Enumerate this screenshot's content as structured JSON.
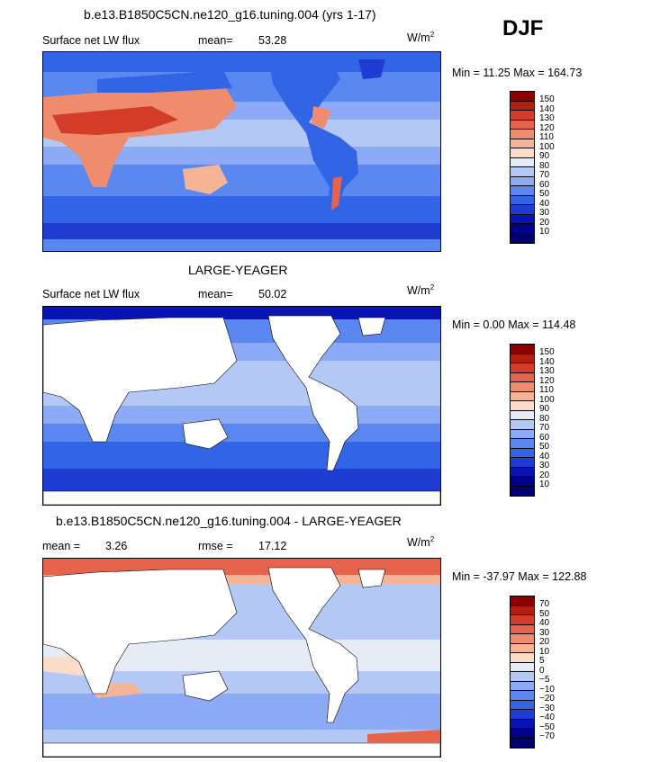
{
  "season": "DJF",
  "unit_main": "W/m",
  "unit_sup": "2",
  "panels": [
    {
      "title": "b.e13.B1850C5CN.ne120_g16.tuning.004 (yrs 1-17)",
      "left_label": "Surface net LW flux",
      "stat_label": "mean=",
      "stat_value": "53.28",
      "minmax": "Min =  11.25 Max = 164.73",
      "ticks": [
        "150",
        "140",
        "130",
        "120",
        "110",
        "100",
        "90",
        "80",
        "70",
        "60",
        "50",
        "40",
        "30",
        "20",
        "10"
      ]
    },
    {
      "title": "LARGE-YEAGER",
      "left_label": "Surface net LW flux",
      "stat_label": "mean=",
      "stat_value": "50.02",
      "minmax": "Min =   0.00 Max = 114.48",
      "ticks": [
        "150",
        "140",
        "130",
        "120",
        "110",
        "100",
        "90",
        "80",
        "70",
        "60",
        "50",
        "40",
        "30",
        "20",
        "10"
      ]
    },
    {
      "title": "b.e13.B1850C5CN.ne120_g16.tuning.004 - LARGE-YEAGER",
      "left_label": "mean =",
      "left_value": "3.26",
      "stat_label": "rmse =",
      "stat_value": "17.12",
      "minmax": "Min = -37.97 Max = 122.88",
      "ticks": [
        "70",
        "50",
        "40",
        "30",
        "20",
        "10",
        "5",
        "0",
        "−5",
        "−10",
        "−20",
        "−30",
        "−40",
        "−50",
        "−70"
      ]
    }
  ],
  "chart_data": [
    {
      "type": "heatmap",
      "title": "b.e13.B1850C5CN.ne120_g16.tuning.004 (yrs 1-17)",
      "variable": "Surface net LW flux",
      "units": "W/m2",
      "mean": 53.28,
      "min": 11.25,
      "max": 164.73,
      "contour_levels": [
        10,
        20,
        30,
        40,
        50,
        60,
        70,
        80,
        90,
        100,
        110,
        120,
        130,
        140,
        150
      ],
      "colors": [
        "#00008b",
        "#0a14b4",
        "#1e3cd2",
        "#3264e6",
        "#5a87f0",
        "#8caaf5",
        "#b4c8f5",
        "#e6ebf5",
        "#fadcc8",
        "#f5b496",
        "#f08c6e",
        "#e6644b",
        "#d23c28",
        "#b41e0f",
        "#8b0000",
        "#640000"
      ]
    },
    {
      "type": "heatmap",
      "title": "LARGE-YEAGER",
      "variable": "Surface net LW flux",
      "units": "W/m2",
      "mean": 50.02,
      "min": 0.0,
      "max": 114.48,
      "contour_levels": [
        10,
        20,
        30,
        40,
        50,
        60,
        70,
        80,
        90,
        100,
        110,
        120,
        130,
        140,
        150
      ],
      "colors": [
        "#00008b",
        "#0a14b4",
        "#1e3cd2",
        "#3264e6",
        "#5a87f0",
        "#8caaf5",
        "#b4c8f5",
        "#e6ebf5",
        "#fadcc8",
        "#f5b496",
        "#f08c6e",
        "#e6644b",
        "#d23c28",
        "#b41e0f",
        "#8b0000",
        "#640000"
      ]
    },
    {
      "type": "heatmap",
      "title": "b.e13.B1850C5CN.ne120_g16.tuning.004 - LARGE-YEAGER",
      "units": "W/m2",
      "mean": 3.26,
      "rmse": 17.12,
      "min": -37.97,
      "max": 122.88,
      "contour_levels": [
        -70,
        -50,
        -40,
        -30,
        -20,
        -10,
        -5,
        0,
        5,
        10,
        20,
        30,
        40,
        50,
        70
      ],
      "colors": [
        "#00008b",
        "#0a14b4",
        "#1e3cd2",
        "#3264e6",
        "#5a87f0",
        "#8caaf5",
        "#b4c8f5",
        "#e6ebf5",
        "#fadcc8",
        "#f5b496",
        "#f08c6e",
        "#e6644b",
        "#d23c28",
        "#b41e0f",
        "#8b0000",
        "#640000"
      ]
    }
  ]
}
